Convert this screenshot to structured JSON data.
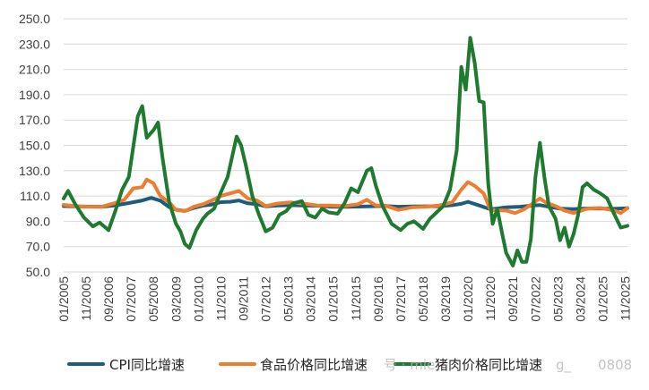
{
  "chart_data": {
    "type": "line",
    "title": "",
    "xlabel": "",
    "ylabel": "",
    "ylim": [
      50,
      250
    ],
    "y_ticks": [
      "250.0",
      "230.0",
      "210.0",
      "190.0",
      "170.0",
      "150.0",
      "130.0",
      "110.0",
      "90.0",
      "70.0",
      "50.0"
    ],
    "x_ticks": [
      "01/2005",
      "11/2005",
      "09/2006",
      "07/2007",
      "05/2008",
      "03/2009",
      "01/2010",
      "11/2010",
      "09/2011",
      "07/2012",
      "05/2013",
      "03/2014",
      "01/2015",
      "11/2015",
      "09/2016",
      "07/2017",
      "05/2018",
      "03/2019",
      "01/2020",
      "11/2020",
      "09/2021",
      "07/2022",
      "05/2023",
      "03/2024",
      "01/2025",
      "11/2025"
    ],
    "grid": "horizontal",
    "legend_position": "bottom",
    "series": [
      {
        "name": "CPI同比增速",
        "color": "#1f5b7a",
        "points": [
          [
            "01/2005",
            102.0
          ],
          [
            "06/2005",
            101.8
          ],
          [
            "12/2005",
            101.6
          ],
          [
            "06/2006",
            101.5
          ],
          [
            "12/2006",
            102.6
          ],
          [
            "06/2007",
            104.4
          ],
          [
            "12/2007",
            106.5
          ],
          [
            "04/2008",
            108.5
          ],
          [
            "08/2008",
            106.3
          ],
          [
            "12/2008",
            101.2
          ],
          [
            "03/2009",
            99.2
          ],
          [
            "07/2009",
            98.2
          ],
          [
            "11/2009",
            100.6
          ],
          [
            "03/2010",
            102.4
          ],
          [
            "07/2010",
            103.3
          ],
          [
            "11/2010",
            105.1
          ],
          [
            "03/2011",
            105.4
          ],
          [
            "07/2011",
            106.5
          ],
          [
            "11/2011",
            104.2
          ],
          [
            "03/2012",
            103.6
          ],
          [
            "07/2012",
            101.8
          ],
          [
            "12/2012",
            102.5
          ],
          [
            "06/2013",
            102.7
          ],
          [
            "12/2013",
            102.5
          ],
          [
            "06/2014",
            102.3
          ],
          [
            "12/2014",
            101.5
          ],
          [
            "06/2015",
            101.4
          ],
          [
            "12/2015",
            101.6
          ],
          [
            "06/2016",
            101.9
          ],
          [
            "12/2016",
            102.1
          ],
          [
            "06/2017",
            101.5
          ],
          [
            "12/2017",
            101.8
          ],
          [
            "06/2018",
            101.9
          ],
          [
            "12/2018",
            101.9
          ],
          [
            "06/2019",
            102.7
          ],
          [
            "10/2019",
            103.8
          ],
          [
            "01/2020",
            105.4
          ],
          [
            "06/2020",
            102.5
          ],
          [
            "11/2020",
            99.5
          ],
          [
            "06/2021",
            101.1
          ],
          [
            "12/2021",
            101.5
          ],
          [
            "06/2022",
            102.5
          ],
          [
            "09/2022",
            102.8
          ],
          [
            "12/2022",
            101.8
          ],
          [
            "06/2023",
            100.0
          ],
          [
            "12/2023",
            99.7
          ],
          [
            "06/2024",
            100.2
          ],
          [
            "12/2024",
            100.1
          ],
          [
            "06/2025",
            99.9
          ],
          [
            "12/2025",
            100.4
          ]
        ]
      },
      {
        "name": "食品价格同比增速",
        "color": "#ed7d31",
        "points": [
          [
            "01/2005",
            103.0
          ],
          [
            "06/2005",
            102.0
          ],
          [
            "12/2005",
            101.5
          ],
          [
            "06/2006",
            101.5
          ],
          [
            "12/2006",
            104.5
          ],
          [
            "04/2007",
            107.0
          ],
          [
            "08/2007",
            116.0
          ],
          [
            "12/2007",
            117.0
          ],
          [
            "02/2008",
            123.0
          ],
          [
            "05/2008",
            120.0
          ],
          [
            "08/2008",
            110.0
          ],
          [
            "12/2008",
            105.0
          ],
          [
            "03/2009",
            99.0
          ],
          [
            "07/2009",
            98.0
          ],
          [
            "11/2009",
            101.5
          ],
          [
            "03/2010",
            103.5
          ],
          [
            "07/2010",
            106.5
          ],
          [
            "11/2010",
            110.0
          ],
          [
            "03/2011",
            112.0
          ],
          [
            "07/2011",
            114.0
          ],
          [
            "11/2011",
            108.0
          ],
          [
            "03/2012",
            106.5
          ],
          [
            "07/2012",
            102.0
          ],
          [
            "12/2012",
            104.0
          ],
          [
            "06/2013",
            105.0
          ],
          [
            "12/2013",
            104.0
          ],
          [
            "06/2014",
            102.5
          ],
          [
            "12/2014",
            102.5
          ],
          [
            "06/2015",
            102.0
          ],
          [
            "12/2015",
            103.5
          ],
          [
            "04/2016",
            107.0
          ],
          [
            "08/2016",
            102.5
          ],
          [
            "12/2016",
            102.5
          ],
          [
            "06/2017",
            99.0
          ],
          [
            "12/2017",
            101.0
          ],
          [
            "06/2018",
            101.5
          ],
          [
            "12/2018",
            102.5
          ],
          [
            "06/2019",
            105.0
          ],
          [
            "10/2019",
            115.0
          ],
          [
            "01/2020",
            121.0
          ],
          [
            "04/2020",
            118.0
          ],
          [
            "08/2020",
            112.0
          ],
          [
            "11/2020",
            99.0
          ],
          [
            "06/2021",
            98.5
          ],
          [
            "10/2021",
            96.5
          ],
          [
            "02/2022",
            99.5
          ],
          [
            "09/2022",
            108.0
          ],
          [
            "12/2022",
            104.5
          ],
          [
            "04/2023",
            102.0
          ],
          [
            "08/2023",
            98.5
          ],
          [
            "12/2023",
            96.5
          ],
          [
            "06/2024",
            100.0
          ],
          [
            "12/2024",
            100.5
          ],
          [
            "06/2025",
            98.5
          ],
          [
            "09/2025",
            96.5
          ],
          [
            "12/2025",
            100.5
          ]
        ]
      },
      {
        "name": "猪肉价格同比增速",
        "color": "#1e7a2e",
        "points": [
          [
            "01/2005",
            108.0
          ],
          [
            "03/2005",
            114.0
          ],
          [
            "06/2005",
            104.0
          ],
          [
            "10/2005",
            93.0
          ],
          [
            "02/2006",
            86.0
          ],
          [
            "05/2006",
            89.0
          ],
          [
            "09/2006",
            83.0
          ],
          [
            "12/2006",
            98.0
          ],
          [
            "03/2007",
            115.0
          ],
          [
            "06/2007",
            125.0
          ],
          [
            "10/2007",
            173.0
          ],
          [
            "12/2007",
            181.0
          ],
          [
            "02/2008",
            156.0
          ],
          [
            "05/2008",
            162.0
          ],
          [
            "07/2008",
            168.0
          ],
          [
            "09/2008",
            140.0
          ],
          [
            "12/2008",
            105.0
          ],
          [
            "03/2009",
            88.0
          ],
          [
            "05/2009",
            82.0
          ],
          [
            "07/2009",
            72.0
          ],
          [
            "09/2009",
            69.0
          ],
          [
            "12/2009",
            83.0
          ],
          [
            "03/2010",
            92.0
          ],
          [
            "05/2010",
            96.0
          ],
          [
            "08/2010",
            100.0
          ],
          [
            "11/2010",
            113.0
          ],
          [
            "02/2011",
            125.0
          ],
          [
            "06/2011",
            157.0
          ],
          [
            "08/2011",
            150.0
          ],
          [
            "10/2011",
            135.0
          ],
          [
            "01/2012",
            110.0
          ],
          [
            "04/2012",
            95.0
          ],
          [
            "07/2012",
            82.0
          ],
          [
            "10/2012",
            85.0
          ],
          [
            "01/2013",
            95.0
          ],
          [
            "04/2013",
            98.0
          ],
          [
            "07/2013",
            104.0
          ],
          [
            "11/2013",
            106.0
          ],
          [
            "02/2014",
            95.0
          ],
          [
            "05/2014",
            93.0
          ],
          [
            "08/2014",
            100.0
          ],
          [
            "11/2014",
            97.0
          ],
          [
            "03/2015",
            96.0
          ],
          [
            "06/2015",
            104.0
          ],
          [
            "09/2015",
            116.0
          ],
          [
            "12/2015",
            113.0
          ],
          [
            "04/2016",
            130.0
          ],
          [
            "06/2016",
            132.0
          ],
          [
            "08/2016",
            118.0
          ],
          [
            "11/2016",
            102.0
          ],
          [
            "03/2017",
            88.0
          ],
          [
            "07/2017",
            83.0
          ],
          [
            "10/2017",
            88.0
          ],
          [
            "01/2018",
            90.0
          ],
          [
            "05/2018",
            84.0
          ],
          [
            "08/2018",
            92.0
          ],
          [
            "11/2018",
            97.0
          ],
          [
            "02/2019",
            102.0
          ],
          [
            "05/2019",
            115.0
          ],
          [
            "08/2019",
            146.0
          ],
          [
            "10/2019",
            212.0
          ],
          [
            "12/2019",
            194.0
          ],
          [
            "02/2020",
            235.0
          ],
          [
            "04/2020",
            215.0
          ],
          [
            "06/2020",
            185.0
          ],
          [
            "08/2020",
            184.0
          ],
          [
            "10/2020",
            120.0
          ],
          [
            "12/2020",
            88.0
          ],
          [
            "02/2021",
            100.0
          ],
          [
            "04/2021",
            82.0
          ],
          [
            "06/2021",
            65.0
          ],
          [
            "09/2021",
            55.0
          ],
          [
            "11/2021",
            67.0
          ],
          [
            "01/2022",
            58.0
          ],
          [
            "03/2022",
            58.0
          ],
          [
            "05/2022",
            76.0
          ],
          [
            "07/2022",
            125.0
          ],
          [
            "09/2022",
            152.0
          ],
          [
            "11/2022",
            125.0
          ],
          [
            "01/2023",
            102.0
          ],
          [
            "04/2023",
            92.0
          ],
          [
            "06/2023",
            75.0
          ],
          [
            "08/2023",
            85.0
          ],
          [
            "10/2023",
            70.0
          ],
          [
            "12/2023",
            80.0
          ],
          [
            "02/2024",
            95.0
          ],
          [
            "04/2024",
            117.0
          ],
          [
            "06/2024",
            120.0
          ],
          [
            "09/2024",
            115.0
          ],
          [
            "12/2024",
            112.0
          ],
          [
            "03/2025",
            108.0
          ],
          [
            "06/2025",
            96.0
          ],
          [
            "09/2025",
            85.0
          ],
          [
            "12/2025",
            86.5
          ]
        ]
      }
    ]
  },
  "watermark": {
    "text_a": "号 · mie",
    "text_b": "g_",
    "text_c": "0808"
  }
}
